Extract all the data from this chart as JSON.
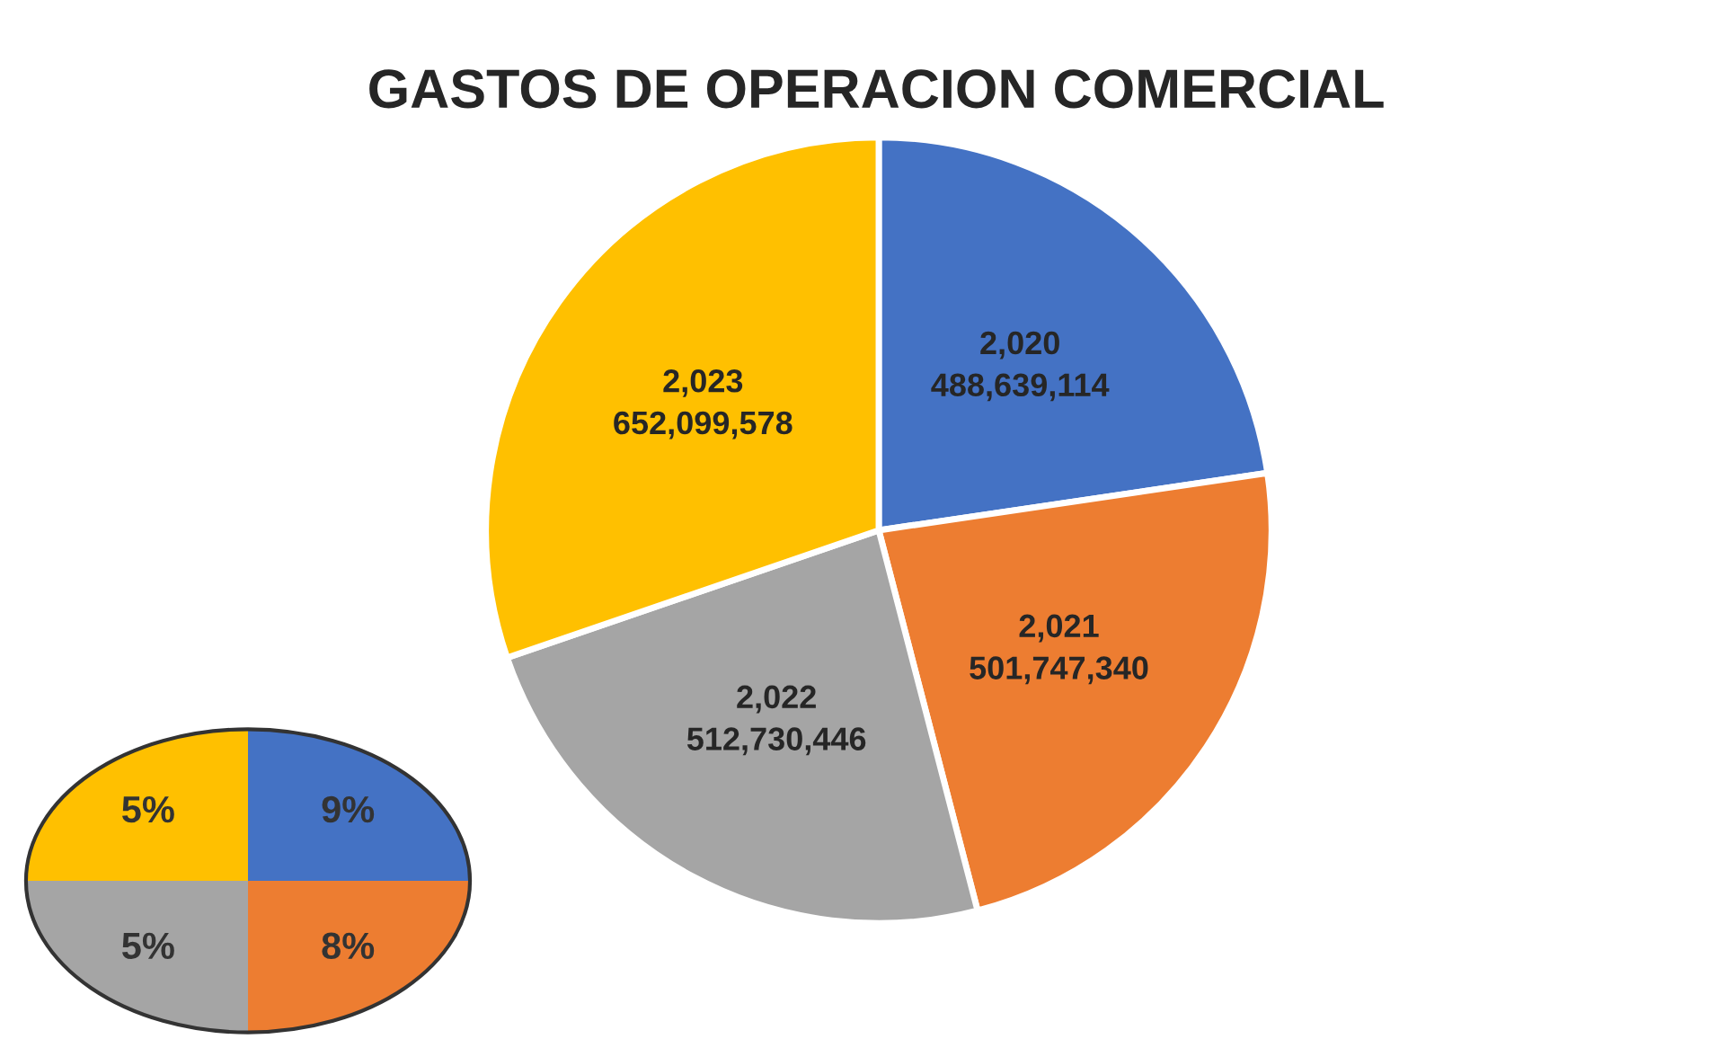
{
  "chart_data": {
    "type": "pie",
    "title": "GASTOS DE OPERACION COMERCIAL",
    "categories": [
      "2,020",
      "2,021",
      "2,022",
      "2,023"
    ],
    "values": [
      488639114,
      501747340,
      512730446,
      652099578
    ],
    "value_labels": [
      "488,639,114",
      "501,747,340",
      "512,730,446",
      "652,099,578"
    ],
    "colors": [
      "#4472c4",
      "#ed7d31",
      "#a5a5a5",
      "#ffc000"
    ],
    "annotations": [
      "9%",
      "8%",
      "5%",
      "5%"
    ]
  }
}
